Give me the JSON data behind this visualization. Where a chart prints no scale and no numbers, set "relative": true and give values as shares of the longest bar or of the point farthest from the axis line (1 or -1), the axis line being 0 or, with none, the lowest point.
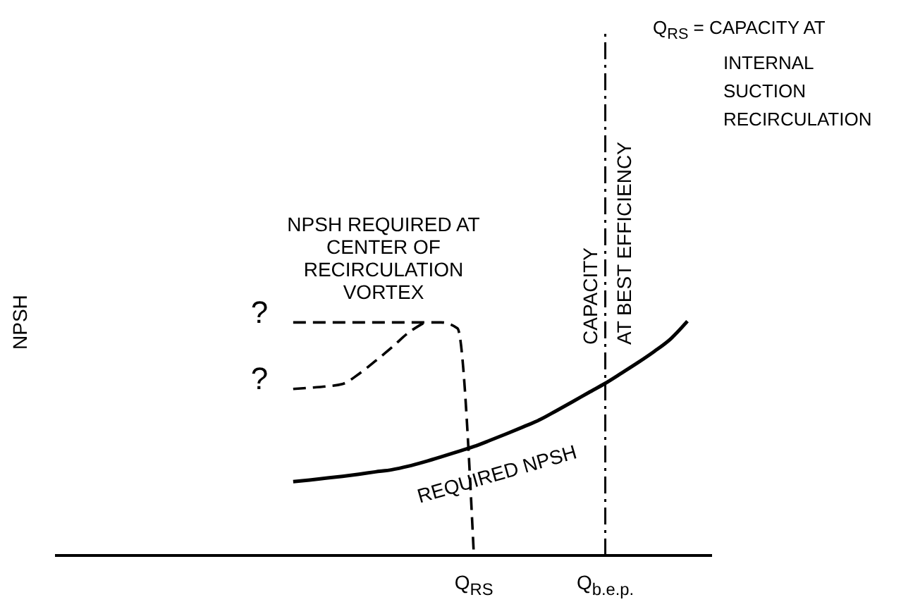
{
  "chart_data": {
    "type": "line",
    "relative": true,
    "ylabel": "NPSH",
    "marker": "none",
    "categories": [
      null,
      null,
      null,
      null,
      null,
      null,
      null,
      null,
      null,
      null,
      null,
      null,
      null,
      null,
      null,
      null,
      null,
      null,
      null,
      null,
      null,
      null,
      null,
      null,
      null,
      "Q$_{RS}$",
      null,
      null,
      null,
      null,
      null,
      null,
      null,
      "Q$_{b.e.p.}$",
      null,
      null,
      null,
      null,
      null,
      null
    ],
    "series": [
      {
        "name": "REQUIRED NPSH",
        "color": "#000000",
        "line_style": "solid",
        "values": [
          null,
          null,
          null,
          null,
          null,
          null,
          null,
          null,
          null,
          null,
          null,
          null,
          null,
          null,
          0.315,
          0.322,
          0.33,
          0.338,
          0.347,
          0.357,
          0.366,
          0.381,
          0.4,
          0.421,
          0.443,
          0.465,
          0.492,
          0.52,
          0.549,
          0.579,
          0.617,
          0.656,
          0.696,
          0.735,
          0.779,
          0.824,
          0.872,
          0.926,
          1,
          null
        ]
      },
      {
        "name": "NPSH REQUIRED AT CENTER OF RECIRCULATION VORTEX",
        "color": "#000000",
        "line_style": "dashed",
        "values": [
          null,
          null,
          null,
          null,
          null,
          null,
          null,
          null,
          null,
          null,
          null,
          null,
          null,
          null,
          0.995,
          0.995,
          0.995,
          0.995,
          0.995,
          0.995,
          0.995,
          0.995,
          0.995,
          0.995,
          0.97,
          0,
          null,
          null,
          null,
          null,
          null,
          null,
          null,
          null,
          null,
          null,
          null,
          null,
          null,
          null
        ]
      },
      {
        "color": "#000000",
        "line_style": "dashed",
        "values": [
          null,
          null,
          null,
          null,
          null,
          null,
          null,
          null,
          null,
          null,
          null,
          null,
          null,
          null,
          0.711,
          0.716,
          0.722,
          0.732,
          0.775,
          0.83,
          0.888,
          0.95,
          0.995,
          null,
          null,
          null,
          null,
          null,
          null,
          null,
          null,
          null,
          null,
          null,
          null,
          null,
          null,
          null,
          null,
          null
        ]
      }
    ],
    "ref_lines": [
      {
        "axis": "x",
        "value": "Q$_{b.e.p.}$",
        "label": "CAPACITY AT BEST EFFICIENCY",
        "color": "#000000",
        "line_style": "dashed"
      }
    ],
    "annotations": [
      "?",
      "?",
      "Q$_{RS}$ = CAPACITY AT INTERNAL SUCTION RECIRCULATION"
    ]
  }
}
